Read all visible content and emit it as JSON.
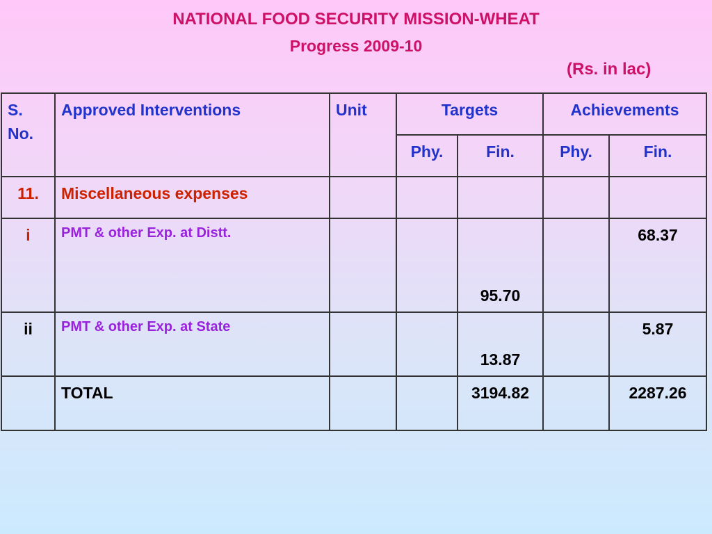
{
  "title": "NATIONAL FOOD SECURITY MISSION-WHEAT",
  "subtitle": "Progress  2009-10",
  "unit_note": "(Rs. in lac)",
  "headers": {
    "sno": "S. No.",
    "interventions": "Approved Interventions",
    "unit": "Unit",
    "targets": "Targets",
    "achievements": "Achievements",
    "targets_phy": "Phy.",
    "targets_fin": "Fin.",
    "achievements_phy": "Phy.",
    "achievements_fin": "Fin."
  },
  "rows": [
    {
      "sno": "11.",
      "intervention": "Miscellaneous expenses",
      "unit": "",
      "t_phy": "",
      "t_fin": "",
      "a_phy": "",
      "a_fin": ""
    },
    {
      "sno": "i",
      "intervention": "PMT &  other Exp. at Distt.",
      "unit": "",
      "t_phy": "",
      "t_fin": "95.70",
      "a_phy": "",
      "a_fin": "68.37"
    },
    {
      "sno": "ii",
      "intervention": "PMT &  other Exp. at State",
      "unit": "",
      "t_phy": "",
      "t_fin": "13.87",
      "a_phy": "",
      "a_fin": "5.87"
    },
    {
      "sno": "",
      "intervention": "TOTAL",
      "unit": "",
      "t_phy": "",
      "t_fin": "3194.82",
      "a_phy": "",
      "a_fin": "2287.26"
    }
  ],
  "colors": {
    "title": "#cc1166",
    "header_text": "#2233cc",
    "section_text": "#cc2200",
    "sub_item_text": "#9922dd",
    "border": "#333333"
  }
}
